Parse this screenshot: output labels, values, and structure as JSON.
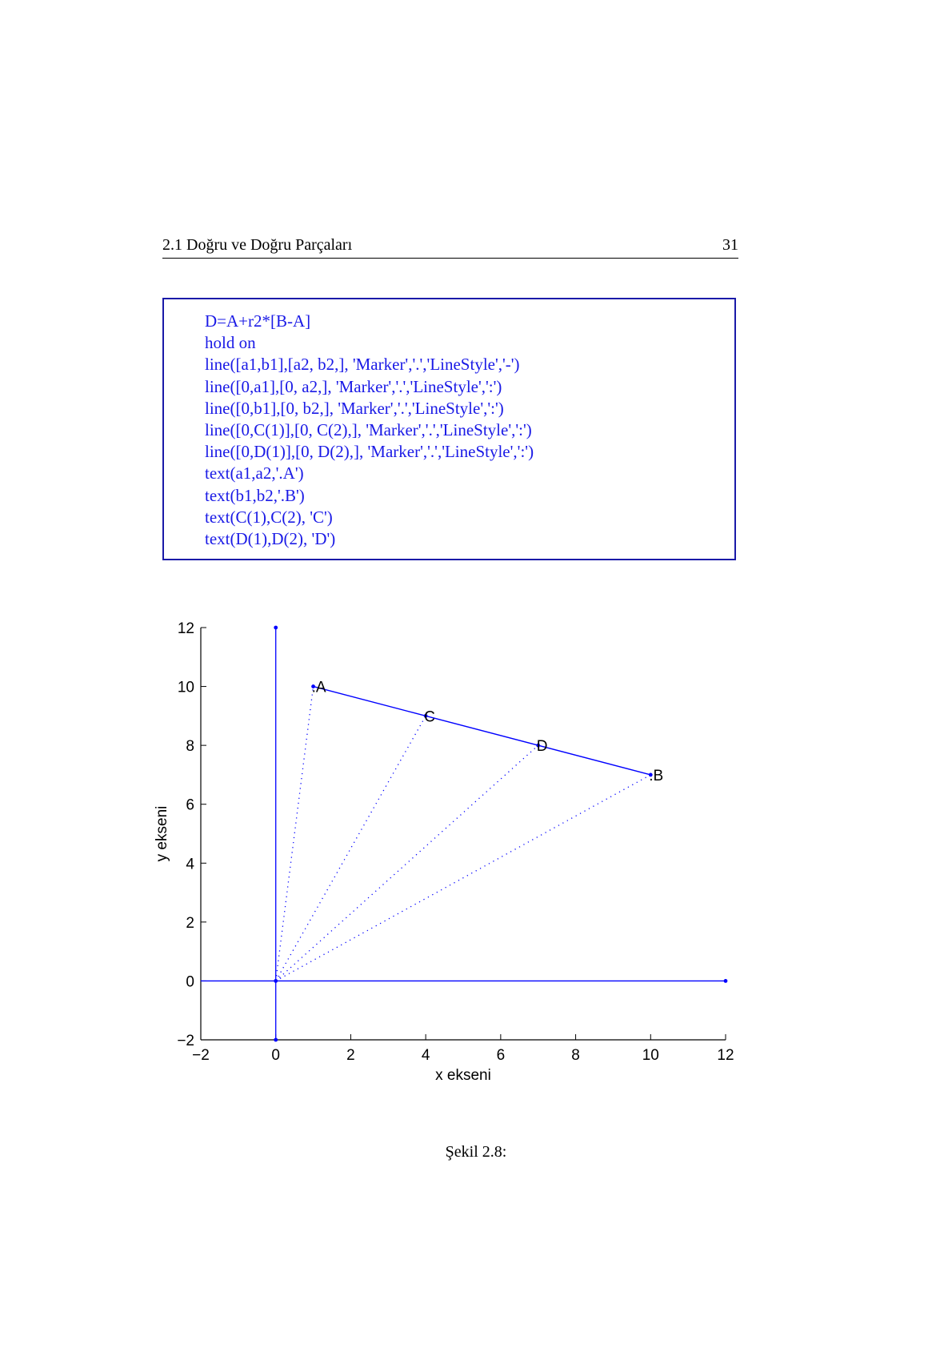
{
  "header": {
    "title": "2.1 Doğru ve Doğru Parçaları",
    "page_number": "31"
  },
  "code": [
    "D=A+r2*[B-A]",
    "hold on",
    "line([a1,b1],[a2, b2,], 'Marker','.','LineStyle','-')",
    "line([0,a1],[0, a2,], 'Marker','.','LineStyle',':')",
    "line([0,b1],[0, b2,], 'Marker','.','LineStyle',':')",
    "line([0,C(1)],[0, C(2),], 'Marker','.','LineStyle',':')",
    "line([0,D(1)],[0, D(2),], 'Marker','.','LineStyle',':')",
    "text(a1,a2,'.A')",
    "text(b1,b2,'.B')",
    "text(C(1),C(2), 'C')",
    "text(D(1),D(2), 'D')"
  ],
  "chart_data": {
    "type": "line",
    "xlabel": "x ekseni",
    "ylabel": "y ekseni",
    "xlim": [
      -2,
      12
    ],
    "ylim": [
      -2,
      12
    ],
    "xticks": [
      -2,
      0,
      2,
      4,
      6,
      8,
      10,
      12
    ],
    "yticks": [
      -2,
      0,
      2,
      4,
      6,
      8,
      10,
      12
    ],
    "xtick_labels": [
      "−2",
      "0",
      "2",
      "4",
      "6",
      "8",
      "10",
      "12"
    ],
    "ytick_labels": [
      "−2",
      "0",
      "2",
      "4",
      "6",
      "8",
      "10",
      "12"
    ],
    "grid": false,
    "axes_lines": [
      {
        "x": [
          -2,
          12
        ],
        "y": [
          0,
          0
        ]
      },
      {
        "x": [
          0,
          0
        ],
        "y": [
          -2,
          12
        ]
      }
    ],
    "segment_AB": {
      "x": [
        1,
        10
      ],
      "y": [
        10,
        7
      ]
    },
    "dotted_lines": [
      {
        "x": [
          0,
          1
        ],
        "y": [
          0,
          10
        ]
      },
      {
        "x": [
          0,
          10
        ],
        "y": [
          0,
          7
        ]
      },
      {
        "x": [
          0,
          4
        ],
        "y": [
          0,
          9
        ]
      },
      {
        "x": [
          0,
          7
        ],
        "y": [
          0,
          8
        ]
      }
    ],
    "markers": [
      {
        "x": 0,
        "y": 0
      },
      {
        "x": 12,
        "y": 0
      },
      {
        "x": 0,
        "y": 12
      },
      {
        "x": 0,
        "y": -2
      },
      {
        "x": 1,
        "y": 10
      },
      {
        "x": 10,
        "y": 7
      },
      {
        "x": 4,
        "y": 9
      },
      {
        "x": 7,
        "y": 8
      }
    ],
    "point_labels": [
      {
        "text": ".A",
        "x": 1,
        "y": 10
      },
      {
        "text": ".B",
        "x": 10,
        "y": 7
      },
      {
        "text": "C",
        "x": 4,
        "y": 9
      },
      {
        "text": "D",
        "x": 7,
        "y": 8
      }
    ],
    "colors": {
      "line": "#0000ff",
      "text": "#000000",
      "axes": "#000000"
    }
  },
  "caption": "Şekil 2.8:"
}
